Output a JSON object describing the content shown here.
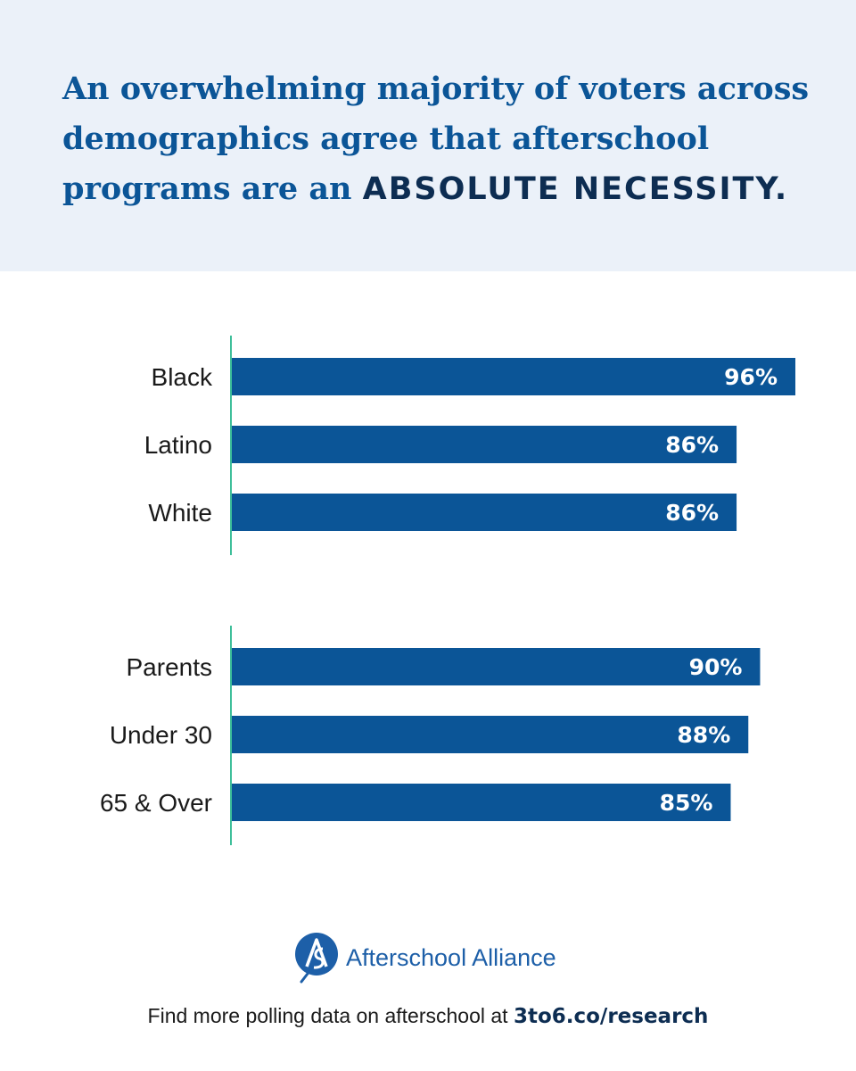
{
  "headline": {
    "text": "An overwhelming majority of voters across demographics agree that afterschool programs are an ",
    "emphasis": "ABSOLUTE NECESSITY."
  },
  "colors": {
    "bar": "#0b5597",
    "axis": "#3fbf9a",
    "header_bg": "#ebf1f9",
    "headline": "#0b5597",
    "emphasis": "#0d2d52"
  },
  "chart_data": [
    {
      "type": "bar",
      "orientation": "horizontal",
      "categories": [
        "Black",
        "Latino",
        "White"
      ],
      "values": [
        96,
        86,
        86
      ],
      "value_labels": [
        "96%",
        "86%",
        "86%"
      ],
      "xlim": [
        0,
        100
      ]
    },
    {
      "type": "bar",
      "orientation": "horizontal",
      "categories": [
        "Parents",
        "Under 30",
        "65 & Over"
      ],
      "values": [
        90,
        88,
        85
      ],
      "value_labels": [
        "90%",
        "88%",
        "85%"
      ],
      "xlim": [
        0,
        100
      ]
    }
  ],
  "logo": {
    "icon": "afterschool-alliance-logo-icon",
    "text": "Afterschool Alliance"
  },
  "footer": {
    "text": "Find more polling data on afterschool at ",
    "link": "3to6.co/research"
  }
}
